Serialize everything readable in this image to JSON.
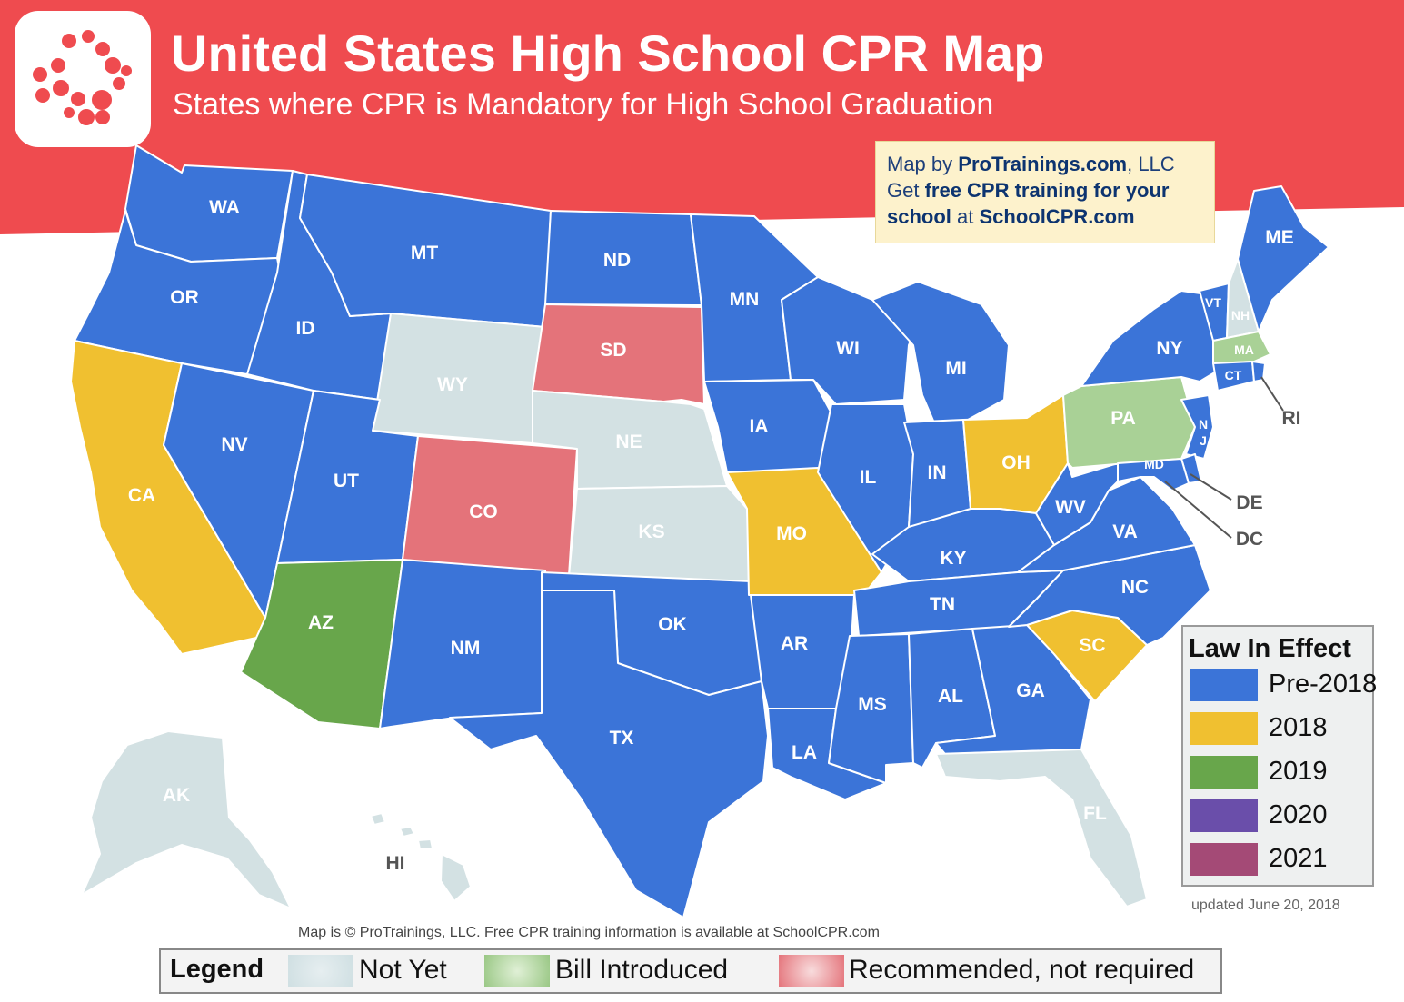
{
  "header": {
    "title": "United States High School CPR Map",
    "subtitle": "States where CPR is Mandatory for High School Graduation"
  },
  "credit": {
    "line1_prefix": "Map by ",
    "line1_brand": "ProTrainings.com",
    "line1_suffix": ", LLC",
    "line2_prefix": "Get ",
    "line2_bold": "free CPR training for your",
    "line3_bold": "school",
    "line3_mid": " at ",
    "line3_site": "SchoolCPR.com"
  },
  "colors": {
    "header_red": "#ef4b4f",
    "pre2018": "#3b74d8",
    "y2018": "#f0c030",
    "y2019": "#68a64b",
    "y2020": "#6a4eaa",
    "y2021": "#a44a76",
    "not_yet": "#d3e1e3",
    "bill_introduced": "#a9d196",
    "recommended": "#e4737a"
  },
  "states": {
    "WA": "pre2018",
    "OR": "pre2018",
    "CA": "y2018",
    "NV": "pre2018",
    "ID": "pre2018",
    "MT": "pre2018",
    "WY": "not_yet",
    "UT": "pre2018",
    "AZ": "y2019",
    "CO": "recommended",
    "NM": "pre2018",
    "ND": "pre2018",
    "SD": "recommended",
    "NE": "not_yet",
    "KS": "not_yet",
    "OK": "pre2018",
    "TX": "pre2018",
    "MN": "pre2018",
    "IA": "pre2018",
    "MO": "y2018",
    "AR": "pre2018",
    "LA": "pre2018",
    "WI": "pre2018",
    "IL": "pre2018",
    "MI": "pre2018",
    "IN": "pre2018",
    "OH": "y2018",
    "KY": "pre2018",
    "TN": "pre2018",
    "MS": "pre2018",
    "AL": "pre2018",
    "GA": "pre2018",
    "FL": "not_yet",
    "SC": "y2018",
    "NC": "pre2018",
    "VA": "pre2018",
    "WV": "pre2018",
    "PA": "bill_introduced",
    "NY": "pre2018",
    "VT": "pre2018",
    "NH": "not_yet",
    "ME": "pre2018",
    "MA": "bill_introduced",
    "CT": "pre2018",
    "RI": "pre2018",
    "NJ": "pre2018",
    "DE": "pre2018",
    "MD": "pre2018",
    "DC": "pre2018",
    "AK": "not_yet",
    "HI": "not_yet"
  },
  "law_legend": {
    "title": "Law In Effect",
    "items": [
      {
        "label": "Pre-2018",
        "color": "#3b74d8"
      },
      {
        "label": "2018",
        "color": "#f0c030"
      },
      {
        "label": "2019",
        "color": "#68a64b"
      },
      {
        "label": "2020",
        "color": "#6a4eaa"
      },
      {
        "label": "2021",
        "color": "#a44a76"
      }
    ]
  },
  "updated": "updated June 20, 2018",
  "copyright": "Map is © ProTrainings, LLC. Free CPR training information is available at SchoolCPR.com",
  "bottom_legend": {
    "title": "Legend",
    "not_yet": "Not Yet",
    "bill_introduced": "Bill Introduced",
    "recommended": "Recommended, not required"
  }
}
